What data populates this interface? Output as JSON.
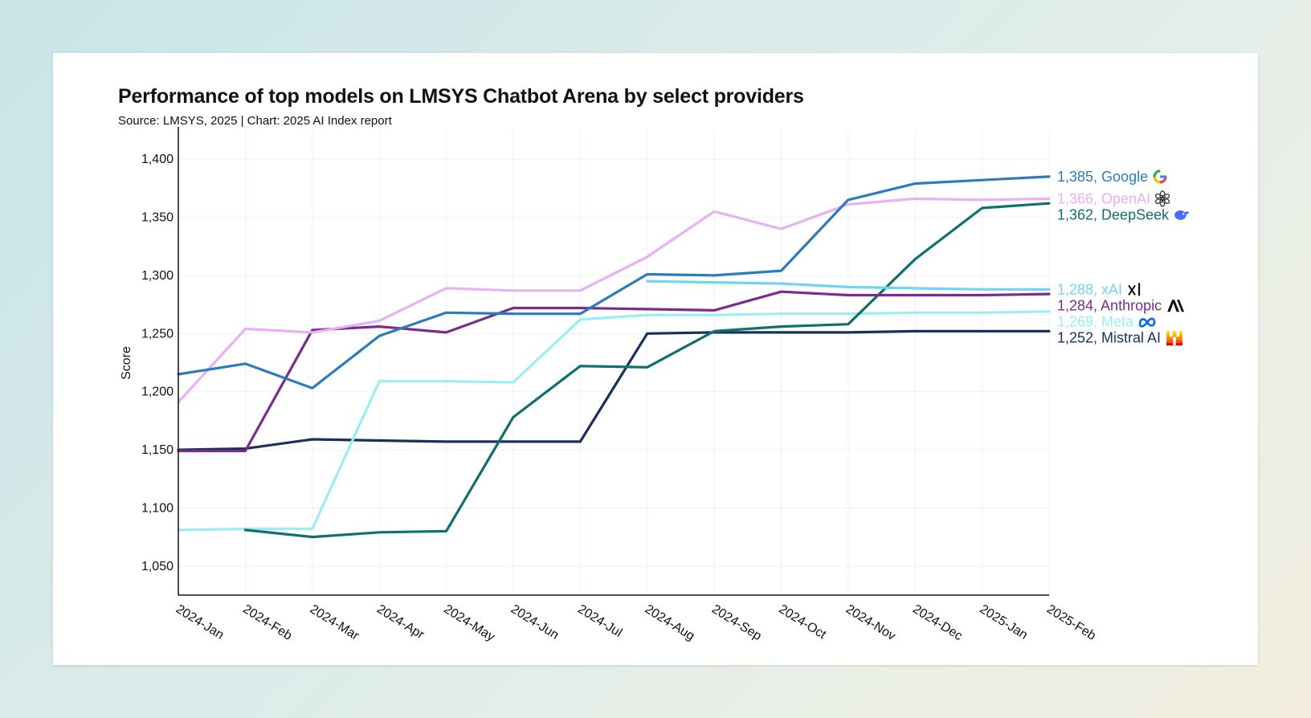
{
  "chart_data": {
    "type": "line",
    "title": "Performance of top models on LMSYS Chatbot Arena by select providers",
    "subtitle": "Source: LMSYS, 2025 | Chart: 2025 AI Index report",
    "xlabel": "",
    "ylabel": "Score",
    "ylim": [
      1025,
      1425
    ],
    "yticks": [
      1050,
      1100,
      1150,
      1200,
      1250,
      1300,
      1350,
      1400
    ],
    "ytick_labels": [
      "1,050",
      "1,100",
      "1,150",
      "1,200",
      "1,250",
      "1,300",
      "1,350",
      "1,400"
    ],
    "categories": [
      "2024-Jan",
      "2024-Feb",
      "2024-Mar",
      "2024-Apr",
      "2024-May",
      "2024-Jun",
      "2024-Jul",
      "2024-Aug",
      "2024-Sep",
      "2024-Oct",
      "2024-Nov",
      "2024-Dec",
      "2025-Jan",
      "2025-Feb"
    ],
    "grid": true,
    "legend": "end-of-line labels",
    "series": [
      {
        "name": "Mistral AI",
        "label": "1,252, Mistral AI",
        "color": "#1b2f5e",
        "icon": "mistral-icon",
        "values": [
          1150,
          1151,
          1159,
          1158,
          1157,
          1157,
          1157,
          1250,
          1251,
          1251,
          1251,
          1252,
          1252,
          1252
        ]
      },
      {
        "name": "Meta",
        "label": "1,269, Meta",
        "color": "#9beef2",
        "icon": "meta-icon",
        "values": [
          1081,
          1082,
          1082,
          1209,
          1209,
          1208,
          1262,
          1266,
          1266,
          1267,
          1267,
          1268,
          1268,
          1269
        ]
      },
      {
        "name": "DeepSeek",
        "label": "1,362, DeepSeek",
        "color": "#10706e",
        "icon": "deepseek-icon",
        "values": [
          null,
          1081,
          1075,
          1079,
          1080,
          1178,
          1222,
          1221,
          1252,
          1256,
          1258,
          1314,
          1358,
          1362
        ]
      },
      {
        "name": "Anthropic",
        "label": "1,284, Anthropic",
        "color": "#7a2c8e",
        "icon": "anthropic-icon",
        "values": [
          1149,
          1149,
          1253,
          1256,
          1251,
          1272,
          1272,
          1271,
          1270,
          1286,
          1283,
          1283,
          1283,
          1284
        ]
      },
      {
        "name": "xAI",
        "label": "1,288, xAI",
        "color": "#72d3f4",
        "icon": "xai-icon",
        "values": [
          null,
          null,
          null,
          null,
          null,
          null,
          null,
          1295,
          1294,
          1293,
          1290,
          1289,
          1288,
          1288
        ]
      },
      {
        "name": "OpenAI",
        "label": "1,366, OpenAI",
        "color": "#e8b0f5",
        "icon": "openai-icon",
        "values": [
          1191,
          1254,
          1251,
          1261,
          1289,
          1287,
          1287,
          1316,
          1355,
          1340,
          1361,
          1366,
          1365,
          1366
        ]
      },
      {
        "name": "Google",
        "label": "1,385, Google",
        "color": "#2c7bbd",
        "icon": "google-icon",
        "values": [
          1215,
          1224,
          1203,
          1248,
          1268,
          1267,
          1267,
          1301,
          1300,
          1304,
          1365,
          1379,
          1382,
          1385
        ]
      }
    ]
  }
}
